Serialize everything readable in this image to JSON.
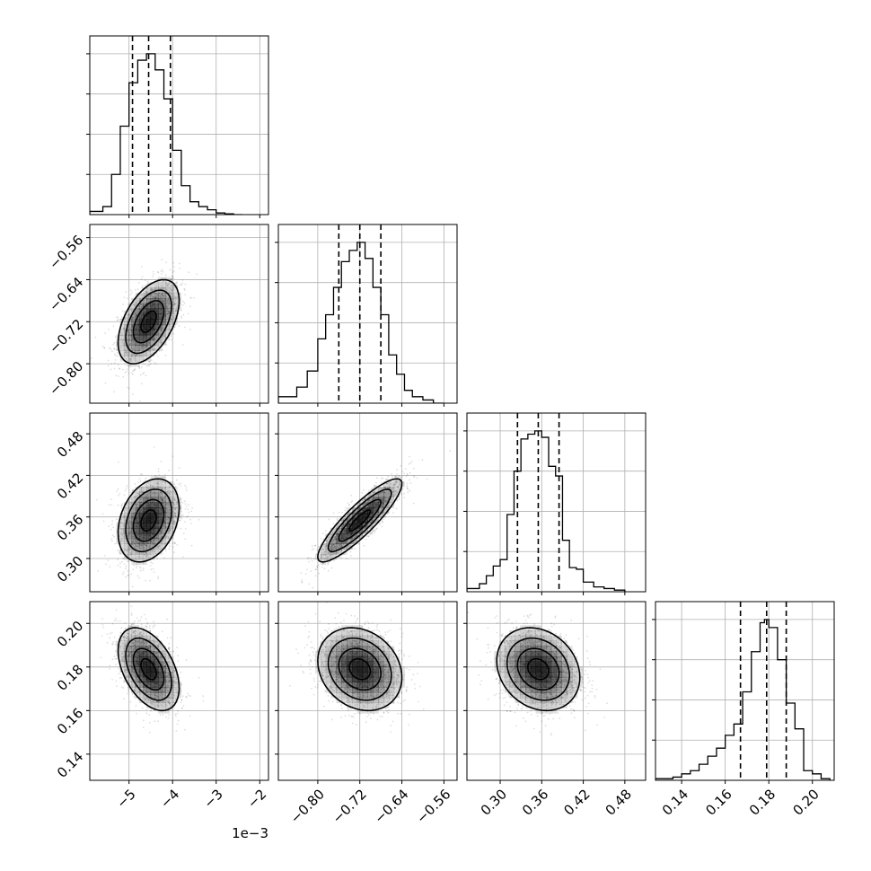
{
  "chart_data": {
    "type": "corner",
    "colors": {
      "line": "#000000",
      "grid": "#b0b0b0",
      "points": "#000000",
      "background": "#ffffff"
    },
    "grid": true,
    "quantiles": [
      0.16,
      0.5,
      0.84
    ],
    "params": [
      {
        "range": [
          -5.9,
          -1.8
        ],
        "ticks": [
          -5,
          -4,
          -3,
          -2
        ],
        "tick_labels": [
          "−5",
          "−4",
          "−3",
          "−2"
        ],
        "offset_label": "1e−3",
        "mean": -4.55,
        "sd": 0.35,
        "quantile_values": [
          -4.92,
          -4.55,
          -4.05
        ],
        "hist_edges": [
          -5.9,
          -5.6,
          -5.4,
          -5.2,
          -5.0,
          -4.8,
          -4.6,
          -4.4,
          -4.2,
          -4.0,
          -3.8,
          -3.6,
          -3.4,
          -3.2,
          -3.0,
          -2.8,
          -2.6,
          -2.4
        ],
        "hist_counts": [
          0.02,
          0.05,
          0.25,
          0.55,
          0.82,
          0.96,
          1.0,
          0.9,
          0.72,
          0.4,
          0.18,
          0.08,
          0.05,
          0.03,
          0.01,
          0.005,
          0.0
        ]
      },
      {
        "range": [
          -0.875,
          -0.535
        ],
        "ticks": [
          -0.8,
          -0.72,
          -0.64,
          -0.56
        ],
        "tick_labels": [
          "−0.80",
          "−0.72",
          "−0.64",
          "−0.56"
        ],
        "mean": -0.72,
        "sd": 0.04,
        "quantile_values": [
          -0.76,
          -0.72,
          -0.68
        ],
        "hist_edges": [
          -0.875,
          -0.84,
          -0.82,
          -0.8,
          -0.785,
          -0.77,
          -0.755,
          -0.74,
          -0.725,
          -0.71,
          -0.695,
          -0.68,
          -0.665,
          -0.65,
          -0.635,
          -0.62,
          -0.6,
          -0.58,
          -0.56
        ],
        "hist_counts": [
          0.04,
          0.1,
          0.2,
          0.4,
          0.55,
          0.72,
          0.88,
          0.95,
          1.0,
          0.9,
          0.72,
          0.55,
          0.3,
          0.18,
          0.08,
          0.04,
          0.02,
          0.0
        ]
      },
      {
        "range": [
          0.252,
          0.51
        ],
        "ticks": [
          0.3,
          0.36,
          0.42,
          0.48
        ],
        "tick_labels": [
          "0.30",
          "0.36",
          "0.42",
          "0.48"
        ],
        "mean": 0.355,
        "sd": 0.03,
        "quantile_values": [
          0.325,
          0.355,
          0.385
        ],
        "hist_edges": [
          0.252,
          0.27,
          0.28,
          0.29,
          0.3,
          0.31,
          0.32,
          0.33,
          0.34,
          0.35,
          0.36,
          0.37,
          0.38,
          0.39,
          0.4,
          0.41,
          0.42,
          0.435,
          0.45,
          0.465,
          0.48
        ],
        "hist_counts": [
          0.02,
          0.05,
          0.1,
          0.16,
          0.2,
          0.48,
          0.75,
          0.95,
          0.98,
          1.0,
          0.96,
          0.78,
          0.72,
          0.32,
          0.15,
          0.14,
          0.06,
          0.03,
          0.02,
          0.01
        ]
      },
      {
        "range": [
          0.128,
          0.21
        ],
        "ticks": [
          0.14,
          0.16,
          0.18,
          0.2
        ],
        "tick_labels": [
          "0.14",
          "0.16",
          "0.18",
          "0.20"
        ],
        "mean": 0.179,
        "sd": 0.0095,
        "quantile_values": [
          0.167,
          0.179,
          0.188
        ],
        "hist_edges": [
          0.128,
          0.136,
          0.14,
          0.144,
          0.148,
          0.152,
          0.156,
          0.16,
          0.164,
          0.168,
          0.172,
          0.176,
          0.178,
          0.18,
          0.184,
          0.188,
          0.192,
          0.196,
          0.2,
          0.204,
          0.208
        ],
        "hist_counts": [
          0.01,
          0.02,
          0.04,
          0.06,
          0.1,
          0.15,
          0.2,
          0.28,
          0.35,
          0.55,
          0.8,
          0.98,
          1.0,
          0.95,
          0.75,
          0.48,
          0.32,
          0.06,
          0.04,
          0.01
        ]
      }
    ],
    "correlations": [
      {
        "i": 1,
        "j": 0,
        "r": 0.5
      },
      {
        "i": 2,
        "j": 0,
        "r": 0.3
      },
      {
        "i": 2,
        "j": 1,
        "r": 0.88
      },
      {
        "i": 3,
        "j": 0,
        "r": -0.45
      },
      {
        "i": 3,
        "j": 1,
        "r": -0.2
      },
      {
        "i": 3,
        "j": 2,
        "r": -0.2
      }
    ],
    "contour_levels_sigma": [
      0.5,
      1.0,
      1.5,
      2.0
    ],
    "scatter_points_per_panel": 1400
  }
}
